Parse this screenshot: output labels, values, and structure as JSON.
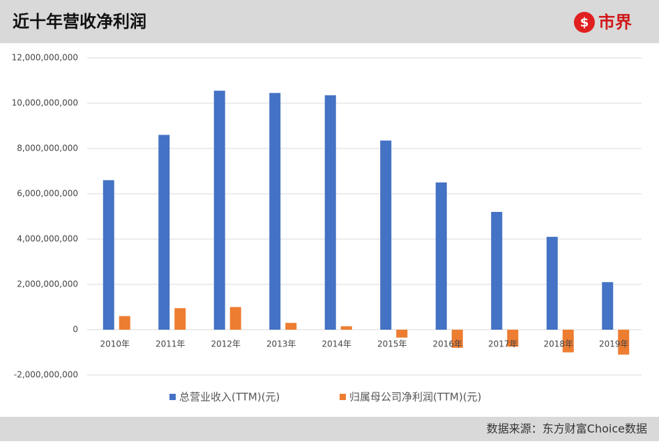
{
  "header": {
    "logo": "市界"
  },
  "chart_data": {
    "type": "bar",
    "title": "近十年营收净利润",
    "source": "数据来源：东方财富Choice数据",
    "categories": [
      "2010年",
      "2011年",
      "2012年",
      "2013年",
      "2014年",
      "2015年",
      "2016年",
      "2017年",
      "2018年",
      "2019年"
    ],
    "series": [
      {
        "name": "总营业收入(TTM)(元)",
        "color": "#4472c4",
        "values": [
          6600000000,
          8600000000,
          10550000000,
          10450000000,
          10350000000,
          8350000000,
          6500000000,
          5200000000,
          4100000000,
          2100000000
        ]
      },
      {
        "name": "归属母公司净利润(TTM)(元)",
        "color": "#ed7d31",
        "values": [
          600000000,
          950000000,
          1000000000,
          300000000,
          150000000,
          -350000000,
          -800000000,
          -750000000,
          -1000000000,
          -1100000000
        ]
      }
    ],
    "ylim": [
      -2000000000,
      12000000000
    ],
    "yticks": [
      {
        "value": -2000000000,
        "label": "-2,000,000,000"
      },
      0,
      {
        "value": 2000000000,
        "label": "2,000,000,000"
      },
      {
        "value": 4000000000,
        "label": "4,000,000,000"
      },
      {
        "value": 6000000000,
        "label": "6,000,000,000"
      },
      {
        "value": 8000000000,
        "label": "8,000,000,000"
      },
      {
        "value": 10000000000,
        "label": "10,000,000,000"
      },
      {
        "value": 12000000000,
        "label": "12,000,000,000"
      }
    ],
    "grid": true
  }
}
